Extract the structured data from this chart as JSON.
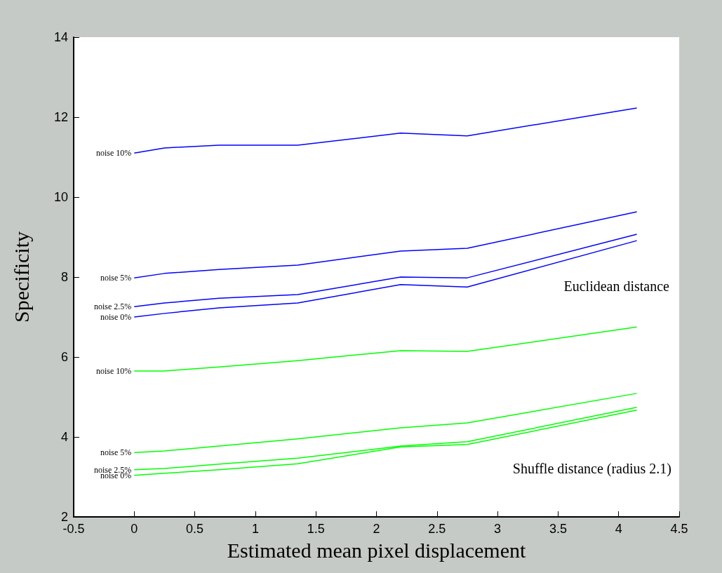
{
  "chart_data": {
    "type": "line",
    "xlabel": "Estimated mean pixel displacement",
    "ylabel": "Specificity",
    "x": [
      0,
      0.25,
      0.7,
      1.35,
      2.2,
      2.75,
      4.15
    ],
    "xlim": [
      -0.5,
      4.5
    ],
    "xticks": [
      -0.5,
      0,
      0.5,
      1,
      1.5,
      2,
      2.5,
      3,
      3.5,
      4,
      4.5
    ],
    "ylim": [
      2,
      14
    ],
    "yticks": [
      2,
      4,
      6,
      8,
      10,
      12,
      14
    ],
    "grid": false,
    "legend": false,
    "line_style": "solid",
    "series": [
      {
        "name": "noise 10%",
        "color": "#0000ff",
        "values": [
          11.1,
          11.23,
          11.3,
          11.3,
          11.6,
          11.53,
          12.23
        ]
      },
      {
        "name": "noise 5%",
        "color": "#0000ff",
        "values": [
          7.98,
          8.09,
          8.19,
          8.3,
          8.65,
          8.72,
          9.63
        ]
      },
      {
        "name": "noise 2.5%",
        "color": "#0000ff",
        "values": [
          7.26,
          7.35,
          7.47,
          7.56,
          8.0,
          7.98,
          9.07
        ]
      },
      {
        "name": "noise 0%",
        "color": "#0000ff",
        "values": [
          7.0,
          7.09,
          7.23,
          7.35,
          7.81,
          7.75,
          8.91
        ]
      },
      {
        "name": "noise 10%",
        "color": "#00ff00",
        "values": [
          5.65,
          5.65,
          5.75,
          5.91,
          6.16,
          6.14,
          6.75
        ]
      },
      {
        "name": "noise 5%",
        "color": "#00ff00",
        "values": [
          3.61,
          3.65,
          3.77,
          3.95,
          4.23,
          4.35,
          5.09
        ]
      },
      {
        "name": "noise 2.5%",
        "color": "#00ff00",
        "values": [
          3.18,
          3.21,
          3.32,
          3.47,
          3.77,
          3.88,
          4.74
        ]
      },
      {
        "name": "noise 0%",
        "color": "#00ff00",
        "values": [
          3.04,
          3.09,
          3.18,
          3.33,
          3.75,
          3.81,
          4.67
        ]
      }
    ],
    "annotations": [
      "Euclidean distance",
      "Shuffle distance (radius 2.1)"
    ]
  }
}
